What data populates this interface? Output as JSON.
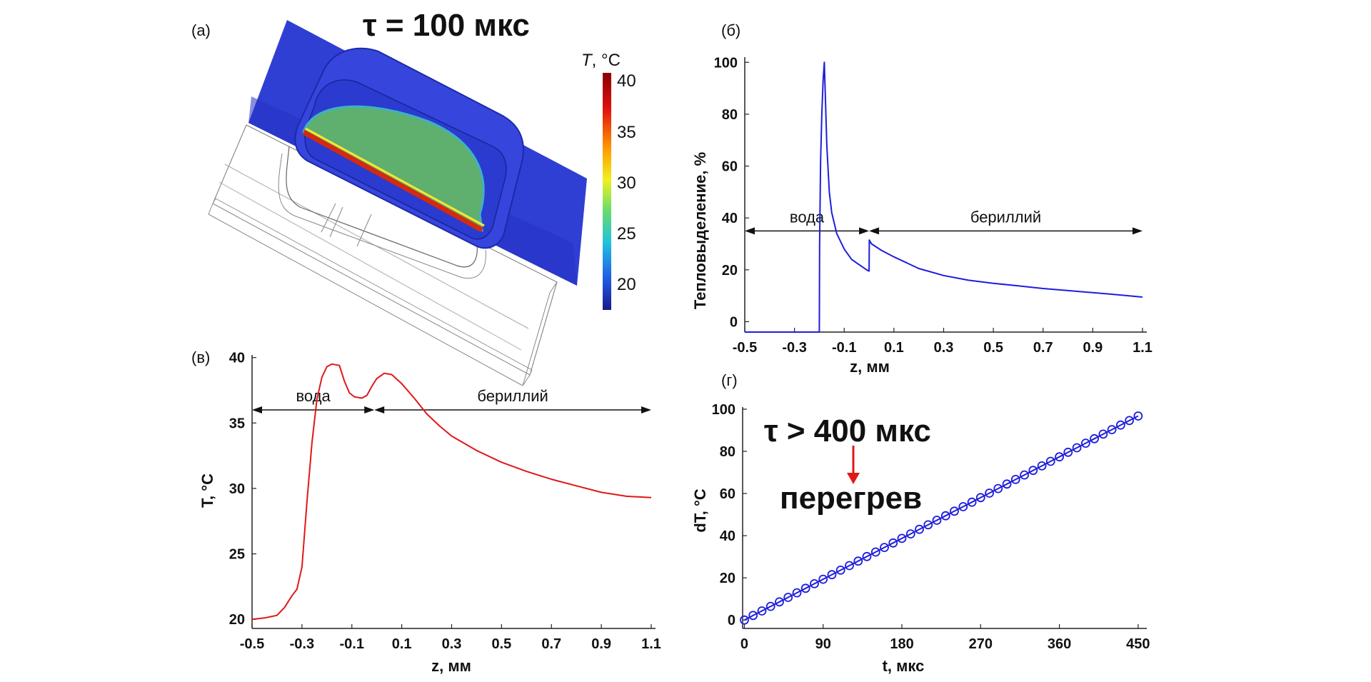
{
  "figure": {
    "panel_a": {
      "label": "(а)",
      "title": "τ = 100 мкс",
      "colorbar": {
        "title_var": "T",
        "title_unit": ", °C",
        "ticks": [
          "40",
          "35",
          "30",
          "25",
          "20"
        ]
      }
    }
  },
  "colors": {
    "blue_series": "#1e1edc",
    "red_series": "#e01818",
    "annotation_arrow": "#e01818"
  },
  "chart_data": [
    {
      "id": "b",
      "label": "(б)",
      "type": "line",
      "xlabel": "z, мм",
      "ylabel": "Тепловыделение, %",
      "xlim": [
        -0.5,
        1.1
      ],
      "ylim": [
        -4,
        102
      ],
      "xticks": [
        -0.5,
        -0.3,
        -0.1,
        0.1,
        0.3,
        0.5,
        0.7,
        0.9,
        1.1
      ],
      "xtick_labels": [
        "-0.5",
        "-0.3",
        "-0.1",
        "0.1",
        "0.3",
        "0.5",
        "0.7",
        "0.9",
        "1.1"
      ],
      "yticks": [
        0,
        20,
        40,
        60,
        80,
        100
      ],
      "ytick_labels": [
        "0",
        "20",
        "40",
        "60",
        "80",
        "100"
      ],
      "regions": [
        {
          "label": "вода",
          "from": -0.5,
          "to": 0.0,
          "y": 35
        },
        {
          "label": "бериллий",
          "from": 0.0,
          "to": 1.1,
          "y": 35
        }
      ],
      "series": [
        {
          "name": "тепловыделение",
          "color": "#1e1edc",
          "x": [
            -0.5,
            -0.2,
            -0.199,
            -0.195,
            -0.19,
            -0.185,
            -0.18,
            -0.17,
            -0.16,
            -0.15,
            -0.13,
            -0.1,
            -0.07,
            -0.04,
            -0.01,
            0.0,
            0.001,
            0.01,
            0.05,
            0.1,
            0.2,
            0.3,
            0.4,
            0.5,
            0.6,
            0.7,
            0.8,
            0.9,
            1.0,
            1.1
          ],
          "y": [
            -4,
            -4,
            30,
            62,
            80,
            93,
            100,
            68,
            50,
            42,
            34,
            28,
            24,
            22,
            20,
            19.5,
            31.5,
            30,
            27.5,
            25,
            20.5,
            17.8,
            16,
            14.8,
            13.8,
            12.8,
            12,
            11.2,
            10.4,
            9.5
          ]
        }
      ]
    },
    {
      "id": "v",
      "label": "(в)",
      "type": "line",
      "xlabel": "z, мм",
      "ylabel": "T, °C",
      "xlim": [
        -0.5,
        1.1
      ],
      "ylim": [
        19.3,
        40.2
      ],
      "xticks": [
        -0.5,
        -0.3,
        -0.1,
        0.1,
        0.3,
        0.5,
        0.7,
        0.9,
        1.1
      ],
      "xtick_labels": [
        "-0.5",
        "-0.3",
        "-0.1",
        "0.1",
        "0.3",
        "0.5",
        "0.7",
        "0.9",
        "1.1"
      ],
      "yticks": [
        20,
        25,
        30,
        35,
        40
      ],
      "ytick_labels": [
        "20",
        "25",
        "30",
        "35",
        "40"
      ],
      "regions": [
        {
          "label": "вода",
          "from": -0.5,
          "to": -0.01,
          "y": 36
        },
        {
          "label": "бериллий",
          "from": -0.01,
          "to": 1.1,
          "y": 36
        }
      ],
      "series": [
        {
          "name": "температура",
          "color": "#e01818",
          "x": [
            -0.5,
            -0.45,
            -0.4,
            -0.37,
            -0.34,
            -0.32,
            -0.3,
            -0.28,
            -0.26,
            -0.24,
            -0.22,
            -0.2,
            -0.18,
            -0.15,
            -0.13,
            -0.11,
            -0.09,
            -0.06,
            -0.04,
            -0.02,
            0.0,
            0.03,
            0.06,
            0.1,
            0.15,
            0.2,
            0.25,
            0.3,
            0.4,
            0.5,
            0.6,
            0.7,
            0.8,
            0.9,
            1.0,
            1.1
          ],
          "y": [
            20,
            20.1,
            20.3,
            20.9,
            21.8,
            22.3,
            24,
            29,
            33.5,
            36.8,
            38.5,
            39.3,
            39.5,
            39.4,
            38.2,
            37.3,
            37,
            36.9,
            37.1,
            37.8,
            38.4,
            38.8,
            38.7,
            38,
            36.9,
            35.7,
            34.8,
            34,
            32.9,
            32,
            31.3,
            30.7,
            30.2,
            29.7,
            29.4,
            29.3
          ]
        }
      ]
    },
    {
      "id": "g",
      "label": "(г)",
      "type": "line",
      "xlabel": "t, мкс",
      "ylabel": "dT, °C",
      "xlim": [
        -2,
        455
      ],
      "ylim": [
        -4,
        101
      ],
      "xticks": [
        0,
        90,
        180,
        270,
        360,
        450
      ],
      "xtick_labels": [
        "0",
        "90",
        "180",
        "270",
        "360",
        "450"
      ],
      "yticks": [
        0,
        20,
        40,
        60,
        80,
        100
      ],
      "ytick_labels": [
        "0",
        "20",
        "40",
        "60",
        "80",
        "100"
      ],
      "annotations": {
        "threshold": "τ > 400 мкс",
        "result": "перегрев"
      },
      "series": [
        {
          "name": "dT",
          "color": "#1e1edc",
          "marker": "circle",
          "x_start": 0,
          "x_step": 10,
          "points": 46,
          "slope": 0.215
        }
      ]
    }
  ]
}
